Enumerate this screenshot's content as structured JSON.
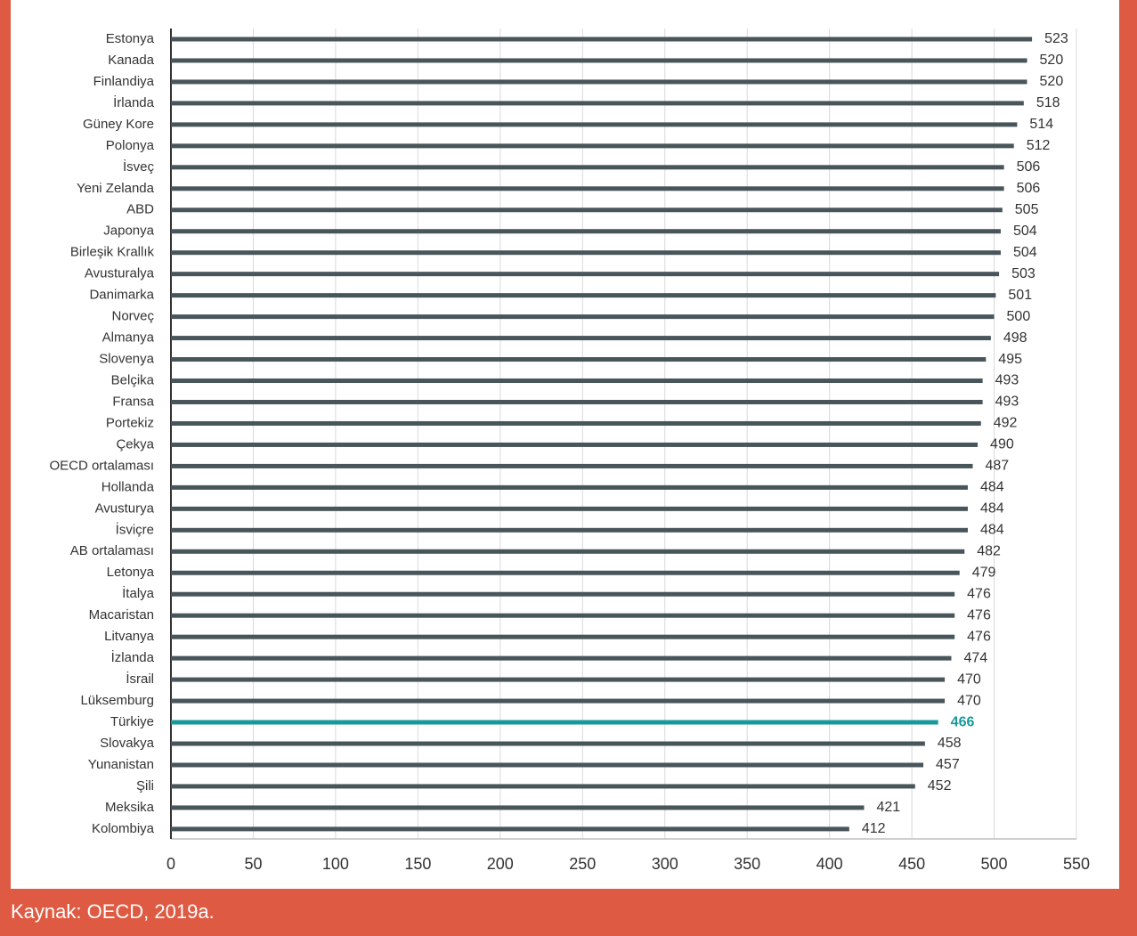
{
  "chart_data": {
    "type": "bar",
    "orientation": "horizontal",
    "categories": [
      "Estonya",
      "Kanada",
      "Finlandiya",
      "İrlanda",
      "Güney Kore",
      "Polonya",
      "İsveç",
      "Yeni Zelanda",
      "ABD",
      "Japonya",
      "Birleşik Krallık",
      "Avusturalya",
      "Danimarka",
      "Norveç",
      "Almanya",
      "Slovenya",
      "Belçika",
      "Fransa",
      "Portekiz",
      "Çekya",
      "OECD ortalaması",
      "Hollanda",
      "Avusturya",
      "İsviçre",
      "AB ortalaması",
      "Letonya",
      "İtalya",
      "Macaristan",
      "Litvanya",
      "İzlanda",
      "İsrail",
      "Lüksemburg",
      "Türkiye",
      "Slovakya",
      "Yunanistan",
      "Şili",
      "Meksika",
      "Kolombiya"
    ],
    "values": [
      523,
      520,
      520,
      518,
      514,
      512,
      506,
      506,
      505,
      504,
      504,
      503,
      501,
      500,
      498,
      495,
      493,
      493,
      492,
      490,
      487,
      484,
      484,
      484,
      482,
      479,
      476,
      476,
      476,
      474,
      470,
      470,
      466,
      458,
      457,
      452,
      421,
      412
    ],
    "color": "#48555a",
    "colors": [
      "#48555a",
      "#48555a",
      "#48555a",
      "#48555a",
      "#48555a",
      "#48555a",
      "#48555a",
      "#48555a",
      "#48555a",
      "#48555a",
      "#48555a",
      "#48555a",
      "#48555a",
      "#48555a",
      "#48555a",
      "#48555a",
      "#48555a",
      "#48555a",
      "#48555a",
      "#48555a",
      "#48555a",
      "#48555a",
      "#48555a",
      "#48555a",
      "#48555a",
      "#48555a",
      "#48555a",
      "#48555a",
      "#48555a",
      "#48555a",
      "#48555a",
      "#48555a",
      "#17999b",
      "#48555a",
      "#48555a",
      "#48555a",
      "#48555a",
      "#48555a"
    ],
    "xlim": [
      0,
      550
    ],
    "xticks": [
      0,
      50,
      100,
      150,
      200,
      250,
      300,
      350,
      400,
      450,
      500,
      550
    ],
    "grid": true,
    "source": "Kaynak: OECD, 2019a."
  }
}
